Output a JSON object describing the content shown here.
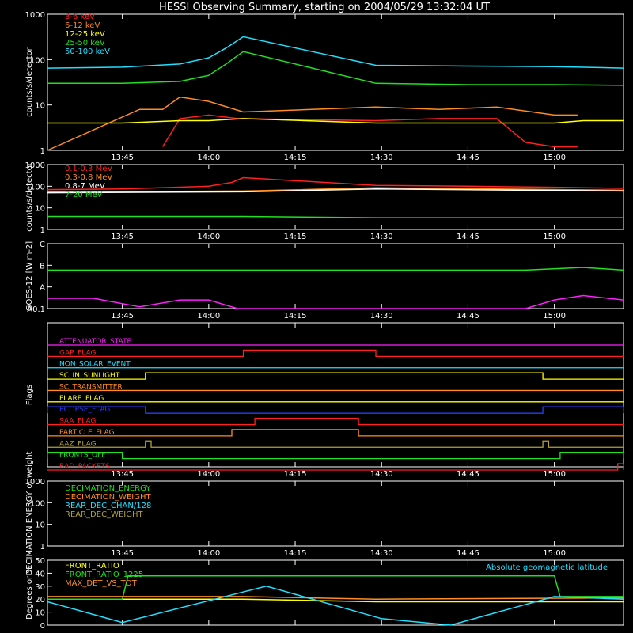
{
  "title": "HESSI Observing Summary, starting on 2004/05/29 13:32:04 UT",
  "x_ticks": [
    "13:45",
    "14:00",
    "14:15",
    "14:30",
    "14:45",
    "15:00"
  ],
  "colors": {
    "red": "#ff2020",
    "orange": "#ff8c20",
    "yellow": "#ffff00",
    "green": "#20e020",
    "cyan": "#20e0ff",
    "magenta": "#ff20ff",
    "blue": "#2040ff",
    "olive": "#b0a040",
    "pink": "#ff60a0",
    "white": "#ffffff"
  },
  "chart_data": [
    {
      "type": "line",
      "ylabel": "counts/s/detector",
      "yscale": "log",
      "ylim": [
        1,
        1000
      ],
      "y_ticks": [
        "1",
        "10",
        "100",
        "1000"
      ],
      "series": [
        {
          "name": "3-6 keV",
          "color": "red",
          "x": [
            "13:52",
            "13:55",
            "14:00",
            "14:05",
            "14:29",
            "14:40",
            "14:50",
            "14:55",
            "15:00",
            "15:04"
          ],
          "y": [
            1.2,
            5,
            6,
            5,
            4.5,
            5,
            5,
            1.5,
            1.2,
            1.2
          ]
        },
        {
          "name": "6-12 keV",
          "color": "orange",
          "x": [
            "13:32",
            "13:48",
            "13:52",
            "13:55",
            "14:00",
            "14:06",
            "14:29",
            "14:40",
            "14:50",
            "15:00",
            "15:04"
          ],
          "y": [
            1,
            8,
            8,
            15,
            12,
            7,
            9,
            8,
            9,
            6,
            6
          ]
        },
        {
          "name": "12-25 keV",
          "color": "yellow",
          "x": [
            "13:32",
            "13:45",
            "13:55",
            "14:00",
            "14:06",
            "14:29",
            "14:45",
            "15:00",
            "15:05",
            "15:12"
          ],
          "y": [
            4,
            4,
            4.5,
            4.5,
            5,
            4,
            4,
            4,
            4.5,
            4.5
          ]
        },
        {
          "name": "25-50 keV",
          "color": "green",
          "x": [
            "13:32",
            "13:45",
            "13:55",
            "14:00",
            "14:03",
            "14:06",
            "14:29",
            "14:45",
            "15:00",
            "15:12"
          ],
          "y": [
            30,
            30,
            33,
            45,
            80,
            150,
            30,
            28,
            28,
            27
          ]
        },
        {
          "name": "50-100 keV",
          "color": "cyan",
          "x": [
            "13:32",
            "13:45",
            "13:55",
            "14:00",
            "14:03",
            "14:06",
            "14:29",
            "14:45",
            "15:00",
            "15:12"
          ],
          "y": [
            65,
            68,
            80,
            110,
            180,
            320,
            75,
            72,
            70,
            65
          ]
        }
      ]
    },
    {
      "type": "line",
      "ylabel": "counts/s/detector",
      "yscale": "log",
      "ylim": [
        1,
        1000
      ],
      "y_ticks": [
        "1",
        "10",
        "100",
        "1000"
      ],
      "series": [
        {
          "name": "0.1-0.3 MeV",
          "color": "red",
          "x": [
            "13:32",
            "13:45",
            "14:00",
            "14:04",
            "14:06",
            "14:29",
            "14:45",
            "15:00",
            "15:12"
          ],
          "y": [
            70,
            75,
            100,
            150,
            250,
            110,
            100,
            90,
            80
          ]
        },
        {
          "name": "0.3-0.8 MeV",
          "color": "orange",
          "x": [
            "13:32",
            "14:06",
            "14:29",
            "15:12"
          ],
          "y": [
            55,
            60,
            85,
            65
          ]
        },
        {
          "name": "0.8-7 MeV",
          "color": "white",
          "x": [
            "13:32",
            "14:06",
            "14:29",
            "15:12"
          ],
          "y": [
            50,
            55,
            75,
            60
          ]
        },
        {
          "name": "7-20 MeV",
          "color": "green",
          "x": [
            "13:32",
            "14:06",
            "14:29",
            "15:12"
          ],
          "y": [
            4,
            4,
            3.5,
            3.5
          ]
        }
      ]
    },
    {
      "type": "line",
      "ylabel": "GOES-12 [W m-2]",
      "yscale": "log",
      "ylim": [
        1e-08,
        1e-05
      ],
      "y_ticks": [
        "A0.1",
        "A",
        "B",
        "C"
      ],
      "series": [
        {
          "name": "long",
          "color": "green",
          "x": [
            "13:32",
            "14:30",
            "14:55",
            "15:05",
            "15:12"
          ],
          "y": [
            6e-07,
            6e-07,
            6e-07,
            8e-07,
            6e-07
          ]
        },
        {
          "name": "short",
          "color": "magenta",
          "x": [
            "13:32",
            "13:40",
            "13:48",
            "13:55",
            "14:00",
            "14:05",
            "14:55",
            "15:00",
            "15:05",
            "15:12"
          ],
          "y": [
            3e-08,
            3e-08,
            1.2e-08,
            2.5e-08,
            2.5e-08,
            1e-08,
            1e-08,
            2.5e-08,
            4e-08,
            2.5e-08
          ]
        }
      ]
    },
    {
      "type": "line",
      "ylabel": "Flags",
      "flags": [
        {
          "name": "ATTENUATOR_STATE",
          "color": "magenta",
          "steps": []
        },
        {
          "name": "GAP_FLAG",
          "color": "red",
          "steps": [
            [
              "14:06",
              "14:29"
            ]
          ]
        },
        {
          "name": "NON_SOLAR_EVENT",
          "color": "cyan",
          "steps": []
        },
        {
          "name": "SC_IN_SUNLIGHT",
          "color": "yellow",
          "steps": [
            [
              "13:49",
              "14:58"
            ]
          ]
        },
        {
          "name": "SC_TRANSMITTER",
          "color": "orange",
          "steps": []
        },
        {
          "name": "FLARE_FLAG",
          "color": "yellow",
          "steps": []
        },
        {
          "name": "ECLIPSE_FLAG",
          "color": "blue",
          "steps": [
            [
              "13:32",
              "13:49"
            ],
            [
              "14:58",
              "15:12"
            ]
          ]
        },
        {
          "name": "SAA_FLAG",
          "color": "red",
          "steps": [
            [
              "14:08",
              "14:26"
            ]
          ]
        },
        {
          "name": "PARTICLE_FLAG",
          "color": "orange",
          "steps": [
            [
              "14:04",
              "14:26"
            ]
          ]
        },
        {
          "name": "AAZ_FLAG",
          "color": "olive",
          "steps": [
            [
              "13:49",
              "13:50"
            ],
            [
              "14:58",
              "14:59"
            ]
          ]
        },
        {
          "name": "FRONTS_OFF",
          "color": "green",
          "steps": [
            [
              "13:32",
              "13:45"
            ],
            [
              "15:01",
              "15:12"
            ]
          ]
        },
        {
          "name": "BAD_PACKETS",
          "color": "red",
          "steps": [
            [
              "15:11",
              "15:12"
            ]
          ]
        }
      ]
    },
    {
      "type": "line",
      "ylabel": "DECIMATION ENERGY or weight",
      "yscale": "log",
      "ylim": [
        1,
        1000
      ],
      "y_ticks": [
        "1",
        "10",
        "100",
        "1000"
      ],
      "series": [
        {
          "name": "DECIMATION_ENERGY",
          "color": "green"
        },
        {
          "name": "DECIMATION_WEIGHT",
          "color": "orange"
        },
        {
          "name": "REAR_DEC_CHAN/128",
          "color": "cyan"
        },
        {
          "name": "REAR_DEC_WEIGHT",
          "color": "olive"
        }
      ]
    },
    {
      "type": "line",
      "ylabel": "Degrees or %",
      "ylim": [
        0,
        50
      ],
      "y_ticks": [
        "0",
        "10",
        "20",
        "30",
        "40",
        "50"
      ],
      "annotation": "Absolute geomagnetic latitude",
      "series": [
        {
          "name": "FRONT_RATIO",
          "color": "yellow",
          "x": [
            "13:32",
            "14:06",
            "14:29",
            "15:12"
          ],
          "y": [
            20,
            20,
            18,
            18
          ]
        },
        {
          "name": "FRONT_RATIO_1225",
          "color": "green",
          "x": [
            "13:32",
            "13:45",
            "13:46",
            "14:06",
            "14:29",
            "15:00",
            "15:01",
            "15:12"
          ],
          "y": [
            20,
            20,
            38,
            38,
            38,
            38,
            22,
            22
          ]
        },
        {
          "name": "MAX_DET_VS_TOT",
          "color": "orange",
          "x": [
            "13:32",
            "14:06",
            "14:29",
            "15:12"
          ],
          "y": [
            22,
            22,
            20,
            21
          ]
        },
        {
          "name": "Absolute geomagnetic latitude",
          "color": "cyan",
          "x": [
            "13:32",
            "13:45",
            "14:10",
            "14:30",
            "14:42",
            "15:00",
            "15:12"
          ],
          "y": [
            18,
            2,
            30,
            5,
            0,
            22,
            20
          ]
        }
      ]
    }
  ]
}
